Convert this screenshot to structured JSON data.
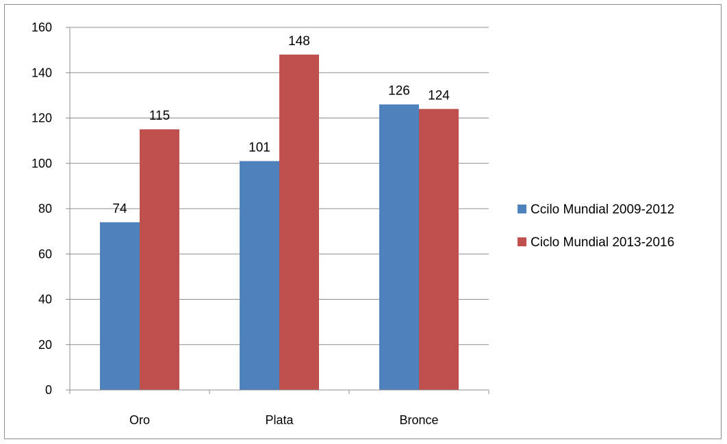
{
  "chart_data": {
    "type": "bar",
    "categories": [
      "Oro",
      "Plata",
      "Bronce"
    ],
    "series": [
      {
        "name": "Ccilo Mundial 2009-2012",
        "values": [
          74,
          101,
          126
        ],
        "color": "#4f81bd"
      },
      {
        "name": "Ciclo Mundial 2013-2016",
        "values": [
          115,
          148,
          124
        ],
        "color": "#c0504d"
      }
    ],
    "title": "",
    "xlabel": "",
    "ylabel": "",
    "ylim": [
      0,
      160
    ],
    "yticks": [
      0,
      20,
      40,
      60,
      80,
      100,
      120,
      140,
      160
    ],
    "grid": true,
    "legend": "right",
    "data_labels": true
  }
}
